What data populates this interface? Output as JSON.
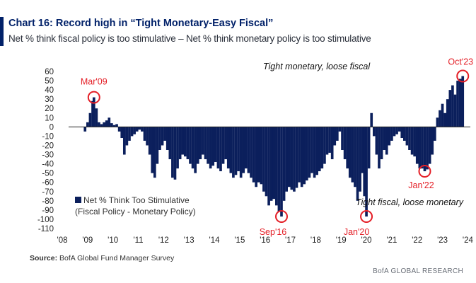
{
  "header": {
    "title": "Chart 16: Record high in “Tight Monetary-Easy Fiscal”",
    "subtitle": "Net % think fiscal policy is too stimulative – Net % think monetary policy is too stimulative"
  },
  "source": {
    "label": "Source:",
    "text": "BofA Global Fund Manager Survey"
  },
  "footer": {
    "brand": "BofA GLOBAL RESEARCH"
  },
  "colors": {
    "accent": "#012169",
    "bar": "#0b1f5c",
    "marker": "#e41e26"
  },
  "chart_data": {
    "type": "bar",
    "xlabel": "",
    "ylabel": "",
    "ylim": [
      -110,
      60
    ],
    "yticks": [
      60,
      50,
      40,
      30,
      20,
      10,
      0,
      -10,
      -20,
      -30,
      -40,
      -50,
      -60,
      -70,
      -80,
      -90,
      -100,
      -110
    ],
    "xticks": [
      "'08",
      "'09",
      "'10",
      "'11",
      "'12",
      "'13",
      "'14",
      "'15",
      "'16",
      "'17",
      "'18",
      "'19",
      "'20",
      "'21",
      "'22",
      "'23",
      "'24"
    ],
    "xlim": [
      2008,
      2024.1
    ],
    "grid": false,
    "legend": {
      "placement": "lower-left",
      "label_line1": "Net % Think Too Stimulative",
      "label_line2": "(Fiscal Policy - Monetary Policy)"
    },
    "regions": [
      "Tight monetary, loose fiscal",
      "Tight fiscal, loose monetary"
    ],
    "series": [
      {
        "name": "Net % Think Too Stimulative",
        "points": [
          [
            2008.9,
            -5
          ],
          [
            2009.0,
            5
          ],
          [
            2009.1,
            15
          ],
          [
            2009.2,
            28
          ],
          [
            2009.25,
            32
          ],
          [
            2009.35,
            20
          ],
          [
            2009.45,
            5
          ],
          [
            2009.55,
            3
          ],
          [
            2009.65,
            5
          ],
          [
            2009.75,
            7
          ],
          [
            2009.85,
            10
          ],
          [
            2009.95,
            4
          ],
          [
            2010.05,
            2
          ],
          [
            2010.15,
            3
          ],
          [
            2010.25,
            -5
          ],
          [
            2010.35,
            -12
          ],
          [
            2010.45,
            -30
          ],
          [
            2010.55,
            -20
          ],
          [
            2010.65,
            -15
          ],
          [
            2010.75,
            -10
          ],
          [
            2010.85,
            -8
          ],
          [
            2010.95,
            -5
          ],
          [
            2011.05,
            -3
          ],
          [
            2011.15,
            -5
          ],
          [
            2011.25,
            -15
          ],
          [
            2011.35,
            -20
          ],
          [
            2011.45,
            -30
          ],
          [
            2011.55,
            -50
          ],
          [
            2011.65,
            -55
          ],
          [
            2011.75,
            -40
          ],
          [
            2011.85,
            -25
          ],
          [
            2011.95,
            -20
          ],
          [
            2012.05,
            -15
          ],
          [
            2012.15,
            -25
          ],
          [
            2012.25,
            -35
          ],
          [
            2012.35,
            -55
          ],
          [
            2012.45,
            -57
          ],
          [
            2012.55,
            -45
          ],
          [
            2012.65,
            -35
          ],
          [
            2012.75,
            -30
          ],
          [
            2012.85,
            -32
          ],
          [
            2012.95,
            -35
          ],
          [
            2013.05,
            -40
          ],
          [
            2013.15,
            -45
          ],
          [
            2013.25,
            -50
          ],
          [
            2013.35,
            -40
          ],
          [
            2013.45,
            -35
          ],
          [
            2013.55,
            -30
          ],
          [
            2013.65,
            -35
          ],
          [
            2013.75,
            -40
          ],
          [
            2013.85,
            -45
          ],
          [
            2013.95,
            -42
          ],
          [
            2014.05,
            -38
          ],
          [
            2014.15,
            -45
          ],
          [
            2014.25,
            -48
          ],
          [
            2014.35,
            -40
          ],
          [
            2014.45,
            -35
          ],
          [
            2014.55,
            -45
          ],
          [
            2014.65,
            -50
          ],
          [
            2014.75,
            -55
          ],
          [
            2014.85,
            -52
          ],
          [
            2014.95,
            -48
          ],
          [
            2015.05,
            -55
          ],
          [
            2015.15,
            -50
          ],
          [
            2015.25,
            -45
          ],
          [
            2015.35,
            -50
          ],
          [
            2015.45,
            -55
          ],
          [
            2015.55,
            -60
          ],
          [
            2015.65,
            -65
          ],
          [
            2015.75,
            -60
          ],
          [
            2015.85,
            -62
          ],
          [
            2015.95,
            -70
          ],
          [
            2016.05,
            -75
          ],
          [
            2016.15,
            -85
          ],
          [
            2016.25,
            -80
          ],
          [
            2016.35,
            -78
          ],
          [
            2016.45,
            -85
          ],
          [
            2016.55,
            -92
          ],
          [
            2016.65,
            -97
          ],
          [
            2016.75,
            -80
          ],
          [
            2016.85,
            -70
          ],
          [
            2016.95,
            -65
          ],
          [
            2017.05,
            -68
          ],
          [
            2017.15,
            -70
          ],
          [
            2017.25,
            -66
          ],
          [
            2017.35,
            -60
          ],
          [
            2017.45,
            -65
          ],
          [
            2017.55,
            -62
          ],
          [
            2017.65,
            -58
          ],
          [
            2017.75,
            -55
          ],
          [
            2017.85,
            -50
          ],
          [
            2017.95,
            -55
          ],
          [
            2018.05,
            -52
          ],
          [
            2018.15,
            -48
          ],
          [
            2018.25,
            -45
          ],
          [
            2018.35,
            -40
          ],
          [
            2018.45,
            -30
          ],
          [
            2018.55,
            -28
          ],
          [
            2018.65,
            -35
          ],
          [
            2018.75,
            -20
          ],
          [
            2018.85,
            -15
          ],
          [
            2018.95,
            -5
          ],
          [
            2019.05,
            -25
          ],
          [
            2019.15,
            -35
          ],
          [
            2019.25,
            -45
          ],
          [
            2019.35,
            -55
          ],
          [
            2019.45,
            -60
          ],
          [
            2019.55,
            -65
          ],
          [
            2019.65,
            -80
          ],
          [
            2019.75,
            -70
          ],
          [
            2019.85,
            -50
          ],
          [
            2019.92,
            -75
          ],
          [
            2020.0,
            -97
          ],
          [
            2020.1,
            -45
          ],
          [
            2020.2,
            15
          ],
          [
            2020.3,
            -10
          ],
          [
            2020.4,
            -30
          ],
          [
            2020.5,
            -45
          ],
          [
            2020.6,
            -35
          ],
          [
            2020.7,
            -25
          ],
          [
            2020.8,
            -30
          ],
          [
            2020.9,
            -20
          ],
          [
            2021.0,
            -15
          ],
          [
            2021.1,
            -10
          ],
          [
            2021.2,
            -8
          ],
          [
            2021.3,
            -5
          ],
          [
            2021.4,
            -12
          ],
          [
            2021.5,
            -15
          ],
          [
            2021.6,
            -20
          ],
          [
            2021.7,
            -25
          ],
          [
            2021.8,
            -30
          ],
          [
            2021.9,
            -32
          ],
          [
            2022.0,
            -40
          ],
          [
            2022.1,
            -45
          ],
          [
            2022.2,
            -45
          ],
          [
            2022.3,
            -48
          ],
          [
            2022.4,
            -46
          ],
          [
            2022.5,
            -40
          ],
          [
            2022.6,
            -30
          ],
          [
            2022.7,
            -15
          ],
          [
            2022.8,
            10
          ],
          [
            2022.9,
            18
          ],
          [
            2023.0,
            25
          ],
          [
            2023.1,
            15
          ],
          [
            2023.2,
            30
          ],
          [
            2023.3,
            40
          ],
          [
            2023.4,
            45
          ],
          [
            2023.5,
            35
          ],
          [
            2023.6,
            50
          ],
          [
            2023.7,
            52
          ],
          [
            2023.8,
            55
          ]
        ]
      }
    ],
    "annotations": [
      {
        "label": "Mar'09",
        "x": 2009.25,
        "y": 32
      },
      {
        "label": "Sep'16",
        "x": 2016.65,
        "y": -97
      },
      {
        "label": "Jan'20",
        "x": 2020.0,
        "y": -97
      },
      {
        "label": "Jan'22",
        "x": 2022.3,
        "y": -48
      },
      {
        "label": "Oct'23",
        "x": 2023.8,
        "y": 55
      }
    ]
  }
}
